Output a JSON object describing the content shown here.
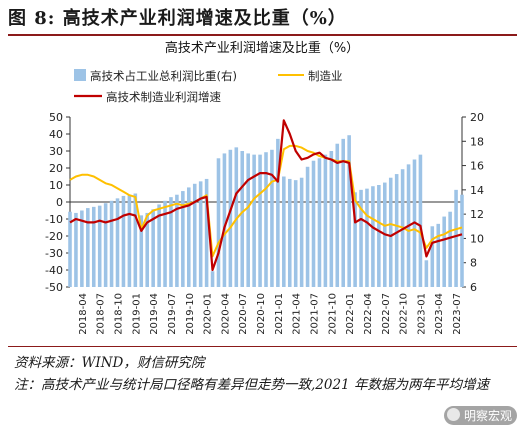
{
  "figure": {
    "title": "图 8:  高技术产业利润增速及比重（%）",
    "source": "资料来源：WIND，财信研究院",
    "note": "注：高技术产业与统计局口径略有差异但走势一致,2021 年数据为两年平均增速",
    "watermark": "明察宏观"
  },
  "chart_data": {
    "type": "bar+line",
    "title": "高技术产业利润增速及比重（%）",
    "legend": [
      "高技术占工业总利润比重(右)",
      "制造业",
      "高技术制造业利润增速"
    ],
    "legend_position": "top",
    "grid": false,
    "x_tick_labels": [
      "2018-04",
      "2018-07",
      "2018-10",
      "2019-01",
      "2019-04",
      "2019-07",
      "2019-10",
      "2020-01",
      "2020-04",
      "2020-07",
      "2020-10",
      "2021-01",
      "2021-04",
      "2021-07",
      "2021-10",
      "2022-01",
      "2022-04",
      "2022-07",
      "2022-10",
      "2023-01",
      "2023-04",
      "2023-07"
    ],
    "x_range": [
      "2018-02",
      "2023-08"
    ],
    "ylim_left": [
      -50,
      50
    ],
    "yticks_left": [
      -50,
      -40,
      -30,
      -20,
      -10,
      0,
      10,
      20,
      30,
      40,
      50
    ],
    "ylim_right": [
      6,
      20
    ],
    "yticks_right": [
      6,
      8,
      10,
      12,
      14,
      16,
      18,
      20
    ],
    "colors": {
      "bars": "#9dc3e6",
      "manufacturing": "#ffc000",
      "hightech": "#c00000"
    },
    "series": [
      {
        "name": "高技术占工业总利润比重(右)",
        "kind": "bar",
        "axis": "right",
        "start": "2018-02",
        "values": [
          12.2,
          12.1,
          12.3,
          12.5,
          12.6,
          12.7,
          12.9,
          13.1,
          13.3,
          13.5,
          13.6,
          13.7,
          11.9,
          12.1,
          12.4,
          12.8,
          13.1,
          13.4,
          13.6,
          13.9,
          14.2,
          14.5,
          14.7,
          14.9,
          7.3,
          16.6,
          17.0,
          17.3,
          17.5,
          17.2,
          17.0,
          16.9,
          16.9,
          17.1,
          17.3,
          18.2,
          15.1,
          14.9,
          14.8,
          15.0,
          15.9,
          16.4,
          16.6,
          16.9,
          17.2,
          17.8,
          18.2,
          18.5,
          13.8,
          14.0,
          14.1,
          14.3,
          14.4,
          14.6,
          15.0,
          15.3,
          15.7,
          16.1,
          16.5,
          16.9,
          8.2,
          11.0,
          11.2,
          11.8,
          12.2,
          14.0,
          13.6
        ]
      },
      {
        "name": "制造业",
        "kind": "line",
        "axis": "left",
        "start": "2018-02",
        "values": [
          13,
          15,
          16,
          16,
          15,
          13,
          11,
          10,
          8,
          6,
          4,
          3,
          -16,
          -8,
          -5,
          -4,
          -3,
          -2,
          -1,
          -2,
          -1,
          0,
          2,
          4,
          -32,
          -24,
          -19,
          -15,
          -10,
          -6,
          -3,
          2,
          5,
          8,
          12,
          13,
          31,
          33,
          33,
          32,
          30,
          29,
          27,
          26,
          25,
          24,
          24,
          24,
          1,
          -4,
          -8,
          -10,
          -12,
          -14,
          -13,
          -14,
          -15,
          -17,
          -16,
          -18,
          -27,
          -22,
          -20,
          -19,
          -17,
          -16,
          -15
        ]
      },
      {
        "name": "高技术制造业利润增速",
        "kind": "line",
        "axis": "left",
        "start": "2018-02",
        "values": [
          -12,
          -10,
          -11,
          -12,
          -12,
          -11,
          -12,
          -11,
          -10,
          -8,
          -7,
          -8,
          -17,
          -12,
          -10,
          -8,
          -7,
          -6,
          -4,
          -3,
          -2,
          0,
          2,
          3,
          -40,
          -30,
          -15,
          -5,
          5,
          9,
          13,
          15,
          17,
          17,
          16,
          12,
          48,
          40,
          30,
          25,
          26,
          28,
          29,
          26,
          25,
          23,
          24,
          23,
          -12,
          -10,
          -12,
          -15,
          -17,
          -19,
          -20,
          -18,
          -16,
          -14,
          -12,
          -14,
          -32,
          -24,
          -23,
          -22,
          -21,
          -20,
          -19
        ]
      }
    ]
  }
}
